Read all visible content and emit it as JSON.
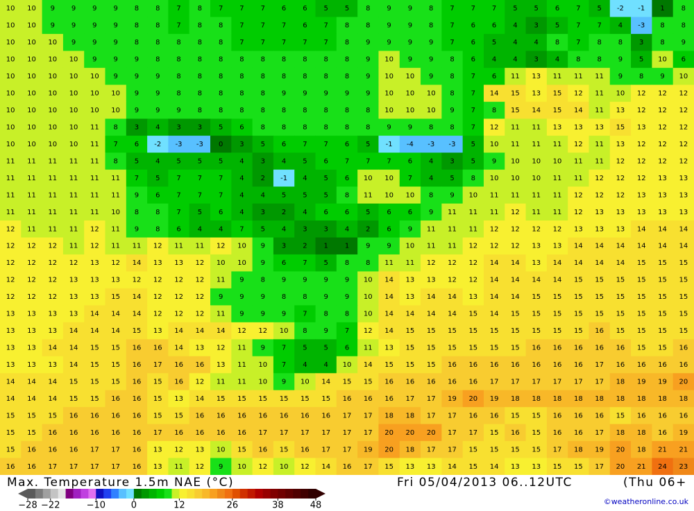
{
  "map": {
    "title": "Max. Temperature 1.5m NAE (°C)",
    "date": "Fri 05/04/2013 06..12UTC",
    "run": "(Thu 06+",
    "credit": "©weatheronline.co.uk",
    "values": [
      [
        10,
        10,
        9,
        9,
        9,
        9,
        8,
        8,
        7,
        8,
        7,
        7,
        7,
        6,
        6,
        5,
        5,
        8,
        9,
        9,
        8,
        7,
        7,
        7,
        5,
        5,
        6,
        7,
        5,
        -2,
        -1,
        1,
        8
      ],
      [
        10,
        10,
        9,
        9,
        9,
        9,
        8,
        8,
        7,
        8,
        8,
        7,
        7,
        7,
        6,
        7,
        8,
        8,
        9,
        9,
        8,
        7,
        6,
        6,
        4,
        3,
        5,
        7,
        7,
        4,
        -3,
        8,
        8
      ],
      [
        10,
        10,
        10,
        9,
        9,
        9,
        8,
        8,
        8,
        8,
        8,
        7,
        7,
        7,
        7,
        7,
        8,
        9,
        9,
        9,
        9,
        7,
        6,
        5,
        4,
        4,
        8,
        7,
        8,
        8,
        3,
        8,
        9
      ],
      [
        10,
        10,
        10,
        10,
        9,
        9,
        9,
        8,
        8,
        8,
        8,
        8,
        8,
        8,
        8,
        8,
        8,
        9,
        10,
        9,
        9,
        8,
        6,
        4,
        4,
        3,
        4,
        8,
        8,
        9,
        5,
        10,
        6
      ],
      [
        10,
        10,
        10,
        10,
        10,
        9,
        9,
        9,
        8,
        8,
        8,
        8,
        8,
        8,
        8,
        8,
        8,
        9,
        10,
        10,
        9,
        8,
        7,
        6,
        11,
        13,
        11,
        11,
        11,
        9,
        8,
        9,
        10
      ],
      [
        10,
        10,
        10,
        10,
        10,
        10,
        9,
        9,
        8,
        8,
        8,
        8,
        8,
        9,
        9,
        9,
        9,
        9,
        10,
        10,
        10,
        8,
        7,
        14,
        15,
        13,
        15,
        12,
        11,
        10,
        12,
        12,
        12
      ],
      [
        10,
        10,
        10,
        10,
        10,
        10,
        9,
        9,
        9,
        8,
        8,
        8,
        8,
        8,
        8,
        8,
        8,
        8,
        10,
        10,
        10,
        9,
        7,
        8,
        15,
        14,
        15,
        14,
        11,
        13,
        12,
        12,
        12
      ],
      [
        10,
        10,
        10,
        10,
        11,
        8,
        3,
        4,
        3,
        3,
        5,
        6,
        8,
        8,
        8,
        8,
        8,
        8,
        9,
        9,
        8,
        8,
        7,
        12,
        11,
        11,
        13,
        13,
        13,
        15,
        13,
        12,
        12
      ],
      [
        10,
        10,
        10,
        10,
        11,
        7,
        6,
        -2,
        -3,
        -3,
        0,
        3,
        5,
        6,
        7,
        7,
        6,
        5,
        -1,
        -4,
        -3,
        -3,
        5,
        10,
        11,
        11,
        11,
        12,
        11,
        13,
        12,
        12,
        12
      ],
      [
        11,
        11,
        11,
        11,
        11,
        8,
        5,
        4,
        5,
        5,
        5,
        4,
        3,
        4,
        5,
        6,
        7,
        7,
        7,
        6,
        4,
        3,
        5,
        9,
        10,
        10,
        10,
        11,
        11,
        12,
        12,
        12,
        12
      ],
      [
        11,
        11,
        11,
        11,
        11,
        11,
        7,
        5,
        7,
        7,
        7,
        4,
        2,
        -1,
        4,
        5,
        6,
        10,
        10,
        7,
        4,
        5,
        8,
        10,
        10,
        10,
        11,
        11,
        12,
        12,
        12,
        13,
        13
      ],
      [
        11,
        11,
        11,
        11,
        11,
        11,
        9,
        6,
        7,
        7,
        7,
        4,
        4,
        5,
        5,
        5,
        8,
        11,
        10,
        10,
        8,
        9,
        10,
        11,
        11,
        11,
        11,
        12,
        12,
        12,
        13,
        13,
        13
      ],
      [
        11,
        11,
        11,
        11,
        11,
        10,
        8,
        8,
        7,
        5,
        6,
        4,
        3,
        2,
        4,
        6,
        6,
        5,
        6,
        6,
        9,
        11,
        11,
        11,
        12,
        11,
        11,
        12,
        13,
        13,
        13,
        13,
        13
      ],
      [
        12,
        11,
        11,
        11,
        12,
        11,
        9,
        8,
        6,
        4,
        4,
        7,
        5,
        4,
        3,
        3,
        4,
        2,
        6,
        9,
        11,
        11,
        11,
        12,
        12,
        12,
        12,
        13,
        13,
        13,
        14,
        14,
        14
      ],
      [
        12,
        12,
        12,
        11,
        12,
        11,
        11,
        12,
        11,
        11,
        12,
        10,
        9,
        3,
        2,
        1,
        1,
        9,
        9,
        10,
        11,
        11,
        12,
        12,
        12,
        13,
        13,
        14,
        14,
        14,
        14,
        14,
        14
      ],
      [
        12,
        12,
        12,
        12,
        13,
        12,
        14,
        13,
        13,
        12,
        10,
        10,
        9,
        6,
        7,
        5,
        8,
        8,
        11,
        11,
        12,
        12,
        12,
        14,
        14,
        13,
        14,
        14,
        14,
        14,
        15,
        15,
        15
      ],
      [
        12,
        12,
        12,
        13,
        13,
        13,
        12,
        12,
        12,
        12,
        11,
        9,
        8,
        9,
        9,
        9,
        9,
        10,
        14,
        13,
        13,
        12,
        12,
        14,
        14,
        14,
        14,
        15,
        15,
        15,
        15,
        15,
        15
      ],
      [
        12,
        12,
        12,
        13,
        13,
        15,
        14,
        12,
        12,
        12,
        9,
        9,
        9,
        8,
        8,
        9,
        9,
        10,
        14,
        13,
        14,
        14,
        13,
        14,
        14,
        15,
        15,
        15,
        15,
        15,
        15,
        15,
        15
      ],
      [
        13,
        13,
        13,
        13,
        14,
        14,
        14,
        12,
        12,
        12,
        11,
        9,
        9,
        9,
        7,
        8,
        8,
        10,
        14,
        14,
        14,
        14,
        15,
        14,
        15,
        15,
        15,
        15,
        15,
        15,
        15,
        15,
        15
      ],
      [
        13,
        13,
        13,
        14,
        14,
        14,
        15,
        13,
        14,
        14,
        14,
        12,
        12,
        10,
        8,
        9,
        7,
        12,
        14,
        15,
        15,
        15,
        15,
        15,
        15,
        15,
        15,
        15,
        16,
        15,
        15,
        15,
        15
      ],
      [
        13,
        13,
        14,
        14,
        15,
        15,
        16,
        16,
        14,
        13,
        12,
        11,
        9,
        7,
        5,
        5,
        6,
        11,
        13,
        15,
        15,
        15,
        15,
        15,
        15,
        16,
        16,
        16,
        16,
        16,
        15,
        15,
        16
      ],
      [
        13,
        13,
        13,
        14,
        15,
        15,
        16,
        17,
        16,
        16,
        13,
        11,
        10,
        7,
        4,
        4,
        10,
        14,
        15,
        15,
        15,
        16,
        16,
        16,
        16,
        16,
        16,
        16,
        17,
        16,
        16,
        16,
        16
      ],
      [
        14,
        14,
        14,
        15,
        15,
        15,
        16,
        15,
        16,
        12,
        11,
        11,
        10,
        9,
        10,
        14,
        15,
        15,
        16,
        16,
        16,
        16,
        16,
        17,
        17,
        17,
        17,
        17,
        17,
        18,
        19,
        19,
        20
      ],
      [
        14,
        14,
        14,
        15,
        15,
        16,
        16,
        15,
        13,
        14,
        15,
        15,
        15,
        15,
        15,
        15,
        16,
        16,
        16,
        17,
        17,
        19,
        20,
        19,
        18,
        18,
        18,
        18,
        18,
        18,
        18,
        18,
        18
      ],
      [
        15,
        15,
        15,
        16,
        16,
        16,
        16,
        15,
        15,
        16,
        16,
        16,
        16,
        16,
        16,
        16,
        17,
        17,
        18,
        18,
        17,
        17,
        16,
        16,
        15,
        15,
        16,
        16,
        16,
        15,
        16,
        16,
        16
      ],
      [
        15,
        15,
        16,
        16,
        16,
        16,
        16,
        17,
        16,
        16,
        16,
        16,
        17,
        17,
        17,
        17,
        17,
        17,
        20,
        20,
        20,
        17,
        17,
        15,
        16,
        15,
        16,
        16,
        17,
        18,
        18,
        16,
        19
      ],
      [
        15,
        16,
        16,
        16,
        17,
        17,
        16,
        13,
        12,
        13,
        10,
        15,
        16,
        15,
        16,
        17,
        17,
        19,
        20,
        18,
        17,
        17,
        15,
        15,
        15,
        15,
        17,
        18,
        19,
        20,
        18,
        21,
        21
      ],
      [
        16,
        16,
        17,
        17,
        17,
        17,
        16,
        13,
        11,
        12,
        9,
        10,
        12,
        10,
        12,
        14,
        16,
        17,
        15,
        13,
        13,
        14,
        15,
        14,
        13,
        13,
        15,
        15,
        17,
        20,
        21,
        24,
        23
      ]
    ],
    "colorbar": {
      "colors": [
        "#5a5a5a",
        "#7c7c7c",
        "#a0a0a0",
        "#c4c4c4",
        "#e4e4e4",
        "#800080",
        "#a020c0",
        "#c040e0",
        "#e070f0",
        "#1010c0",
        "#2040f0",
        "#3080ff",
        "#58c0ff",
        "#70e0ff",
        "#007800",
        "#009800",
        "#00b400",
        "#00cc00",
        "#18e018",
        "#c8f028",
        "#f8f030",
        "#f8e030",
        "#f8cc30",
        "#f8b828",
        "#f8a020",
        "#f08818",
        "#f07010",
        "#e05000",
        "#d03000",
        "#c01800",
        "#b00000",
        "#980000",
        "#800000",
        "#700000",
        "#600000",
        "#500000",
        "#400000",
        "#300000"
      ],
      "ticks": [
        {
          "value": -28,
          "label": "−28"
        },
        {
          "value": -22,
          "label": "−22"
        },
        {
          "value": -10,
          "label": "−10"
        },
        0,
        12,
        26,
        38,
        48
      ]
    }
  }
}
